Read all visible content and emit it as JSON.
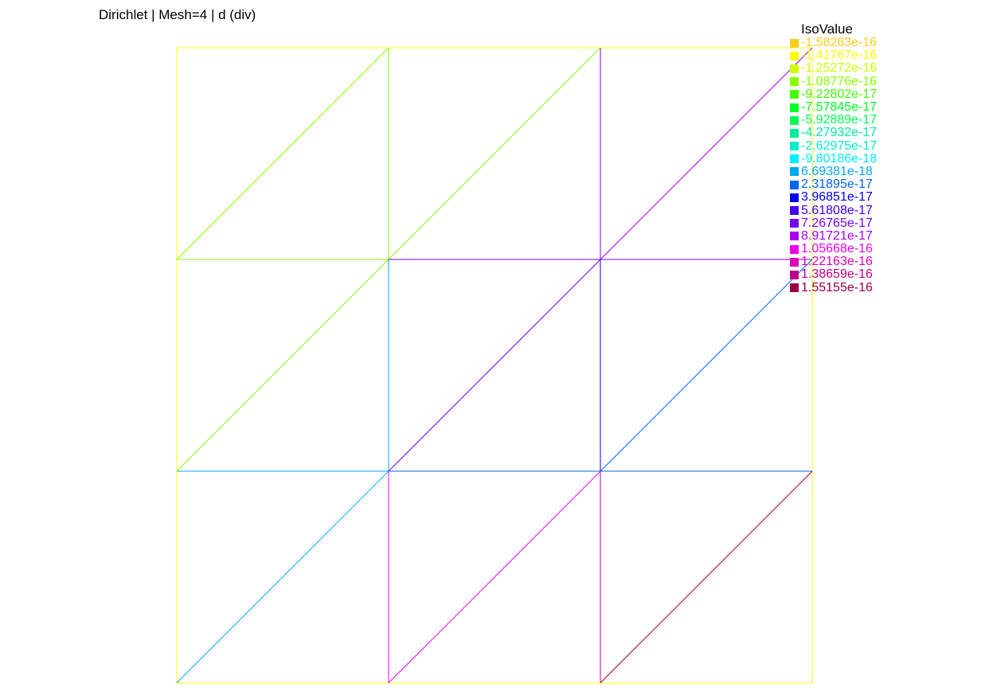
{
  "title": "Dirichlet | Mesh=4 | d (div)",
  "legend": {
    "title": "IsoValue",
    "items": [
      {
        "label": "-1.58263e-16",
        "color": "#ffcc20"
      },
      {
        "label": "-1.41767e-16",
        "color": "#ffff00"
      },
      {
        "label": "-1.25272e-16",
        "color": "#ccff00"
      },
      {
        "label": "-1.08776e-16",
        "color": "#88ff00"
      },
      {
        "label": "-9.22802e-17",
        "color": "#44ff00"
      },
      {
        "label": "-7.57845e-17",
        "color": "#00ff22"
      },
      {
        "label": "-5.92889e-17",
        "color": "#00ff55"
      },
      {
        "label": "-4.27932e-17",
        "color": "#00ee99"
      },
      {
        "label": "-2.62975e-17",
        "color": "#00eecc"
      },
      {
        "label": "-9.80186e-18",
        "color": "#00eeff"
      },
      {
        "label": "6.69381e-18",
        "color": "#00aaee"
      },
      {
        "label": "2.31895e-17",
        "color": "#0066ee"
      },
      {
        "label": "3.96851e-17",
        "color": "#0000ee"
      },
      {
        "label": "5.61808e-17",
        "color": "#4400ee"
      },
      {
        "label": "7.26765e-17",
        "color": "#7700ee"
      },
      {
        "label": "8.91721e-17",
        "color": "#aa00ee"
      },
      {
        "label": "1.05668e-16",
        "color": "#ee00ee"
      },
      {
        "label": "1.22163e-16",
        "color": "#dd00bb"
      },
      {
        "label": "1.38659e-16",
        "color": "#bb0088"
      },
      {
        "label": "1.55155e-16",
        "color": "#990044"
      }
    ]
  },
  "edges": [
    {
      "from": [
        0,
        3
      ],
      "to": [
        3,
        0
      ],
      "level": 1
    },
    {
      "from": [
        3,
        0
      ],
      "to": [
        6,
        3
      ],
      "level": 1
    },
    {
      "from": [
        6,
        3
      ],
      "to": [
        3,
        6
      ],
      "level": 1
    },
    {
      "from": [
        3,
        6
      ],
      "to": [
        0,
        3
      ],
      "level": 1
    },
    {
      "from": [
        1,
        2
      ],
      "to": [
        1,
        4
      ],
      "level": 3
    },
    {
      "from": [
        1,
        2
      ],
      "to": [
        2,
        3
      ],
      "level": 3
    },
    {
      "from": [
        2,
        3
      ],
      "to": [
        1,
        4
      ],
      "level": 3
    },
    {
      "from": [
        2,
        1
      ],
      "to": [
        2,
        5
      ],
      "level": 3
    },
    {
      "from": [
        2,
        1
      ],
      "to": [
        3,
        2
      ],
      "level": 14
    },
    {
      "from": [
        3,
        2
      ],
      "to": [
        4,
        1
      ],
      "level": 14
    },
    {
      "from": [
        2,
        3
      ],
      "to": [
        3,
        2
      ],
      "level": 14
    },
    {
      "from": [
        3,
        0
      ],
      "to": [
        3,
        2
      ],
      "level": 15
    },
    {
      "from": [
        3,
        2
      ],
      "to": [
        3,
        4
      ],
      "level": 14
    },
    {
      "from": [
        4,
        1
      ],
      "to": [
        4,
        3
      ],
      "level": 11
    },
    {
      "from": [
        3,
        2
      ],
      "to": [
        4,
        3
      ],
      "level": 12
    },
    {
      "from": [
        4,
        3
      ],
      "to": [
        5,
        2
      ],
      "level": 11
    },
    {
      "from": [
        5,
        2
      ],
      "to": [
        5,
        4
      ],
      "level": 19
    },
    {
      "from": [
        4,
        3
      ],
      "to": [
        5,
        4
      ],
      "level": 18
    },
    {
      "from": [
        2,
        3
      ],
      "to": [
        3,
        4
      ],
      "level": 10
    },
    {
      "from": [
        2,
        5
      ],
      "to": [
        3,
        4
      ],
      "level": 10
    },
    {
      "from": [
        3,
        4
      ],
      "to": [
        4,
        3
      ],
      "level": 11
    },
    {
      "from": [
        3,
        4
      ],
      "to": [
        3,
        6
      ],
      "level": 10
    },
    {
      "from": [
        3,
        4
      ],
      "to": [
        4,
        5
      ],
      "level": 16
    },
    {
      "from": [
        4,
        3
      ],
      "to": [
        4,
        5
      ],
      "level": 16
    }
  ]
}
